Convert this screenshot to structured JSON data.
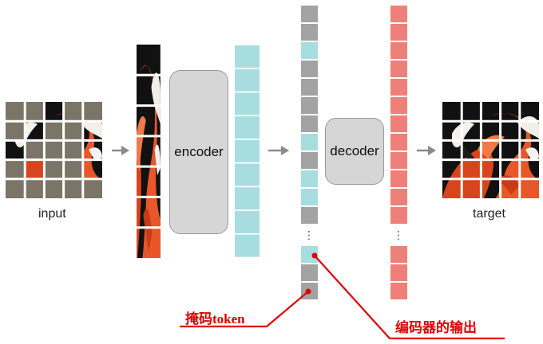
{
  "labels": {
    "input": "input",
    "target": "target",
    "encoder": "encoder",
    "decoder": "decoder",
    "mask_token": "掩码token",
    "encoder_output": "编码器的输出"
  },
  "colors": {
    "mask_gray": "#7b7567",
    "token_gray": "#a3a3a3",
    "encoder_cyan": "#a8dde0",
    "decoder_red": "#ee8079",
    "annotation_red": "#e00000",
    "arrow_gray": "#8a8a8a",
    "box_fill": "#d6d6d6"
  },
  "ellipsis": "⋮"
}
